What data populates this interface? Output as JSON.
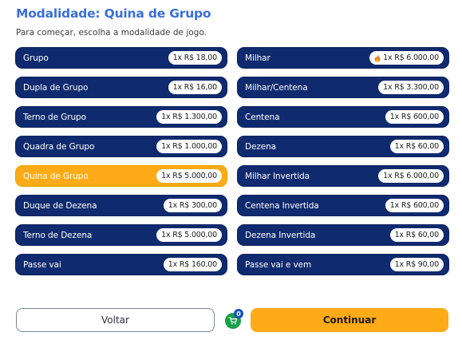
{
  "header": {
    "title": "Modalidade: Quina de Grupo",
    "subtitle": "Para começar, escolha a modalidade de jogo."
  },
  "colors": {
    "title": "#3a6fd8",
    "option_bg": "#0f2a6e",
    "selected_bg": "#ffab17",
    "continue_bg": "#ffab17",
    "cart_bg": "#18a04a",
    "badge_bg": "#1452b8"
  },
  "options": [
    {
      "label": "Grupo",
      "price": "1x R$ 18,00",
      "selected": false,
      "hot": false
    },
    {
      "label": "Milhar",
      "price": "1x R$ 6.000,00",
      "selected": false,
      "hot": true
    },
    {
      "label": "Dupla de Grupo",
      "price": "1x R$ 16,00",
      "selected": false,
      "hot": false
    },
    {
      "label": "Milhar/Centena",
      "price": "1x R$ 3.300,00",
      "selected": false,
      "hot": false
    },
    {
      "label": "Terno de Grupo",
      "price": "1x R$ 1.300,00",
      "selected": false,
      "hot": false
    },
    {
      "label": "Centena",
      "price": "1x R$ 600,00",
      "selected": false,
      "hot": false
    },
    {
      "label": "Quadra de Grupo",
      "price": "1x R$ 1.000,00",
      "selected": false,
      "hot": false
    },
    {
      "label": "Dezena",
      "price": "1x R$ 60,00",
      "selected": false,
      "hot": false
    },
    {
      "label": "Quina de Grupo",
      "price": "1x R$ 5.000,00",
      "selected": true,
      "hot": false
    },
    {
      "label": "Milhar Invertida",
      "price": "1x R$ 6.000,00",
      "selected": false,
      "hot": false
    },
    {
      "label": "Duque de Dezena",
      "price": "1x R$ 300,00",
      "selected": false,
      "hot": false
    },
    {
      "label": "Centena Invertida",
      "price": "1x R$ 600,00",
      "selected": false,
      "hot": false
    },
    {
      "label": "Terno de Dezena",
      "price": "1x R$ 5.000,00",
      "selected": false,
      "hot": false
    },
    {
      "label": "Dezena Invertida",
      "price": "1x R$ 60,00",
      "selected": false,
      "hot": false
    },
    {
      "label": "Passe vai",
      "price": "1x R$ 160,00",
      "selected": false,
      "hot": false
    },
    {
      "label": "Passe vai e vem",
      "price": "1x R$ 90,00",
      "selected": false,
      "hot": false
    }
  ],
  "footer": {
    "back_label": "Voltar",
    "continue_label": "Continuar",
    "cart_count": "0",
    "cart_icon": "cart-icon"
  }
}
